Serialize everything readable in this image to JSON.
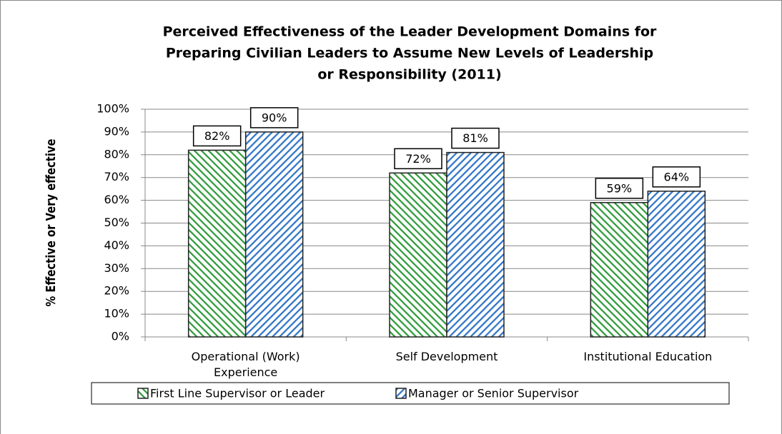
{
  "chart_data": {
    "type": "bar",
    "title": [
      "Perceived Effectiveness of the Leader Development Domains for",
      "Preparing Civilian Leaders to Assume New Levels of Leadership",
      "or Responsibility (2011)"
    ],
    "y_axis_label": "% Effective or Very effective",
    "categories": [
      "Operational (Work) Experience",
      "Self Development",
      "Institutional Education"
    ],
    "series": [
      {
        "name": "First Line Supervisor or Leader",
        "color": "#2e9a3a",
        "values": [
          82,
          72,
          59
        ],
        "value_labels": [
          "82%",
          "72%",
          "59%"
        ]
      },
      {
        "name": "Manager or Senior Supervisor",
        "color": "#2f74c6",
        "values": [
          90,
          81,
          64
        ],
        "value_labels": [
          "90%",
          "81%",
          "64%"
        ]
      }
    ],
    "ylim": [
      0,
      100
    ],
    "yticks": [
      {
        "value": 0,
        "label": "0%"
      },
      {
        "value": 10,
        "label": "10%"
      },
      {
        "value": 20,
        "label": "20%"
      },
      {
        "value": 30,
        "label": "30%"
      },
      {
        "value": 40,
        "label": "40%"
      },
      {
        "value": 50,
        "label": "50%"
      },
      {
        "value": 60,
        "label": "60%"
      },
      {
        "value": 70,
        "label": "70%"
      },
      {
        "value": 80,
        "label": "80%"
      },
      {
        "value": 90,
        "label": "90%"
      },
      {
        "value": 100,
        "label": "100%"
      }
    ],
    "grid": true,
    "legend": "bottom"
  }
}
